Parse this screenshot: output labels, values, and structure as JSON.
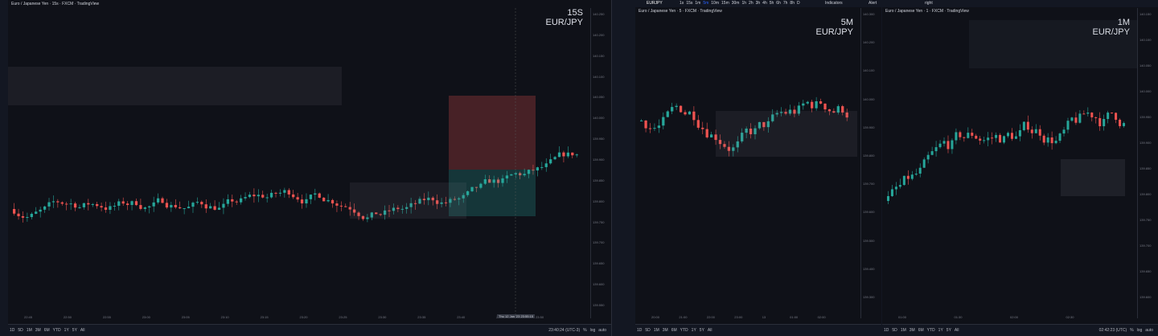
{
  "panels": [
    {
      "title": "Euro / Japanese Yen · 15s · FXCM · TradingView",
      "interval": "15S",
      "symbol": "EUR/JPY",
      "price_labels": [
        "140.250",
        "140.200",
        "140.150",
        "140.100",
        "140.050",
        "140.000",
        "139.950",
        "139.900",
        "139.850",
        "139.800",
        "139.750",
        "139.700",
        "139.650",
        "139.600",
        "139.550"
      ],
      "time_labels": [
        "22:45",
        "22:50",
        "22:55",
        "23:00",
        "23:05",
        "23:10",
        "23:15",
        "23:20",
        "23:25",
        "23:30",
        "23:35",
        "23:40",
        "23:45",
        "23:50"
      ],
      "date_label": "Thu 12 Jan '23  23:55:15",
      "ranges": [
        "1D",
        "5D",
        "1M",
        "3M",
        "6M",
        "YTD",
        "1Y",
        "5Y",
        "All"
      ],
      "clock": "23:40:24 (UTC-3)",
      "pct": "%",
      "log": "log",
      "auto": "auto"
    },
    {
      "title": "Euro / Japanese Yen · 5 · FXCM · TradingView",
      "interval": "5M",
      "symbol": "EUR/JPY",
      "price_labels": [
        "140.300",
        "140.200",
        "140.100",
        "140.000",
        "139.900",
        "139.800",
        "139.700",
        "139.600",
        "139.500",
        "139.400",
        "139.300"
      ],
      "time_labels": [
        "20:00",
        "21:00",
        "22:00",
        "23:00",
        "13",
        "01:00",
        "02:00"
      ],
      "ranges": [
        "1D",
        "5D",
        "1M",
        "3M",
        "6M",
        "YTD",
        "1Y",
        "5Y",
        "All"
      ]
    },
    {
      "title": "Euro / Japanese Yen · 1 · FXCM · TradingView",
      "interval": "1M",
      "symbol": "EUR/JPY",
      "price_labels": [
        "140.150",
        "140.100",
        "140.050",
        "140.000",
        "139.950",
        "139.900",
        "139.850",
        "139.800",
        "139.750",
        "139.700",
        "139.650",
        "139.600"
      ],
      "time_labels": [
        "01:00",
        "01:30",
        "02:00",
        "02:30"
      ],
      "ranges": [
        "1D",
        "5D",
        "1M",
        "3M",
        "6M",
        "YTD",
        "1Y",
        "5Y",
        "All"
      ],
      "clock": "02:42:23 (UTC)",
      "pct": "%",
      "log": "log",
      "auto": "auto"
    }
  ],
  "header": {
    "ticker": "EURJPY",
    "intervals": [
      "1s",
      "15s",
      "1m",
      "5m",
      "10m",
      "15m",
      "30m",
      "1h",
      "2h",
      "3h",
      "4h",
      "5h",
      "6h",
      "7h",
      "8h",
      "D"
    ],
    "indicators": "Indicators",
    "alert": "Alert",
    "layout": "right"
  }
}
